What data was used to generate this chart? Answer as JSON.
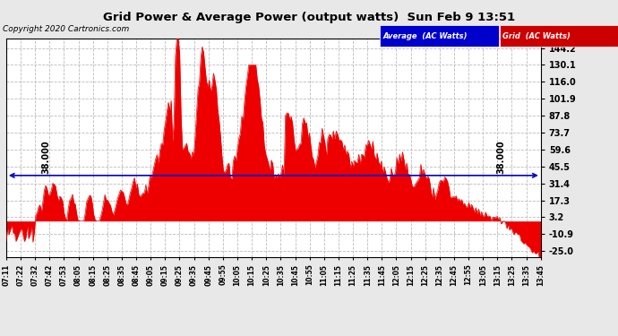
{
  "title": "Grid Power & Average Power (output watts)  Sun Feb 9 13:51",
  "copyright": "Copyright 2020 Cartronics.com",
  "legend_items": [
    {
      "label": "Average  (AC Watts)",
      "bg": "#0000cc",
      "fg": "#ffffff"
    },
    {
      "label": "Grid  (AC Watts)",
      "bg": "#cc0000",
      "fg": "#ffffff"
    }
  ],
  "average_line_y": 38.0,
  "average_label": "38.000",
  "yticks": [
    144.2,
    130.1,
    116.0,
    101.9,
    87.8,
    73.7,
    59.6,
    45.5,
    31.4,
    17.3,
    3.2,
    -10.9,
    -25.0
  ],
  "ylim": [
    -30,
    152
  ],
  "grid_color": "#bbbbbb",
  "background_color": "#e8e8e8",
  "plot_bg": "#ffffff",
  "bar_color": "#ee0000",
  "avg_line_color": "#0000cc",
  "xtick_labels": [
    "07:11",
    "07:22",
    "07:32",
    "07:42",
    "07:53",
    "08:05",
    "08:15",
    "08:25",
    "08:35",
    "08:45",
    "09:05",
    "09:15",
    "09:25",
    "09:35",
    "09:45",
    "09:55",
    "10:05",
    "10:15",
    "10:25",
    "10:35",
    "10:45",
    "10:55",
    "11:05",
    "11:15",
    "11:25",
    "11:35",
    "11:45",
    "12:05",
    "12:15",
    "12:25",
    "12:35",
    "12:45",
    "12:55",
    "13:05",
    "13:15",
    "13:25",
    "13:35",
    "13:45"
  ],
  "n_points": 380
}
